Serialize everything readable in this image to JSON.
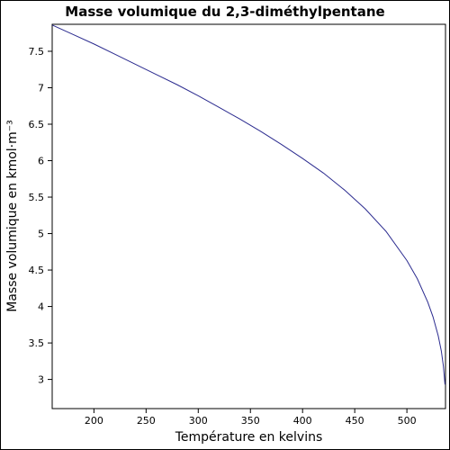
{
  "chart_data": {
    "type": "line",
    "title": "Masse volumique du 2,3-diméthylpentane",
    "xlabel": "Température en kelvins",
    "ylabel": "Masse volumique en kmol·m⁻³",
    "xlim": [
      160,
      537
    ],
    "ylim": [
      2.6,
      7.87
    ],
    "xticks": [
      200,
      250,
      300,
      350,
      400,
      450,
      500
    ],
    "yticks": [
      3,
      3.5,
      4,
      4.5,
      5,
      5.5,
      6,
      6.5,
      7,
      7.5
    ],
    "ytick_labels": [
      "3",
      "3.5",
      "4",
      "4.5",
      "5",
      "5.5",
      "6",
      "6.5",
      "7",
      "7.5"
    ],
    "grid": false,
    "line_color": "#2b2b8f",
    "series": [
      {
        "x": [
          160,
          180,
          200,
          220,
          240,
          260,
          280,
          300,
          320,
          340,
          360,
          380,
          400,
          420,
          440,
          460,
          480,
          500,
          510,
          520,
          525,
          530,
          533,
          535,
          536.5
        ],
        "y": [
          7.86,
          7.73,
          7.6,
          7.46,
          7.32,
          7.18,
          7.04,
          6.89,
          6.73,
          6.57,
          6.4,
          6.22,
          6.03,
          5.83,
          5.6,
          5.34,
          5.03,
          4.63,
          4.38,
          4.06,
          3.86,
          3.6,
          3.39,
          3.18,
          2.93
        ]
      }
    ]
  }
}
